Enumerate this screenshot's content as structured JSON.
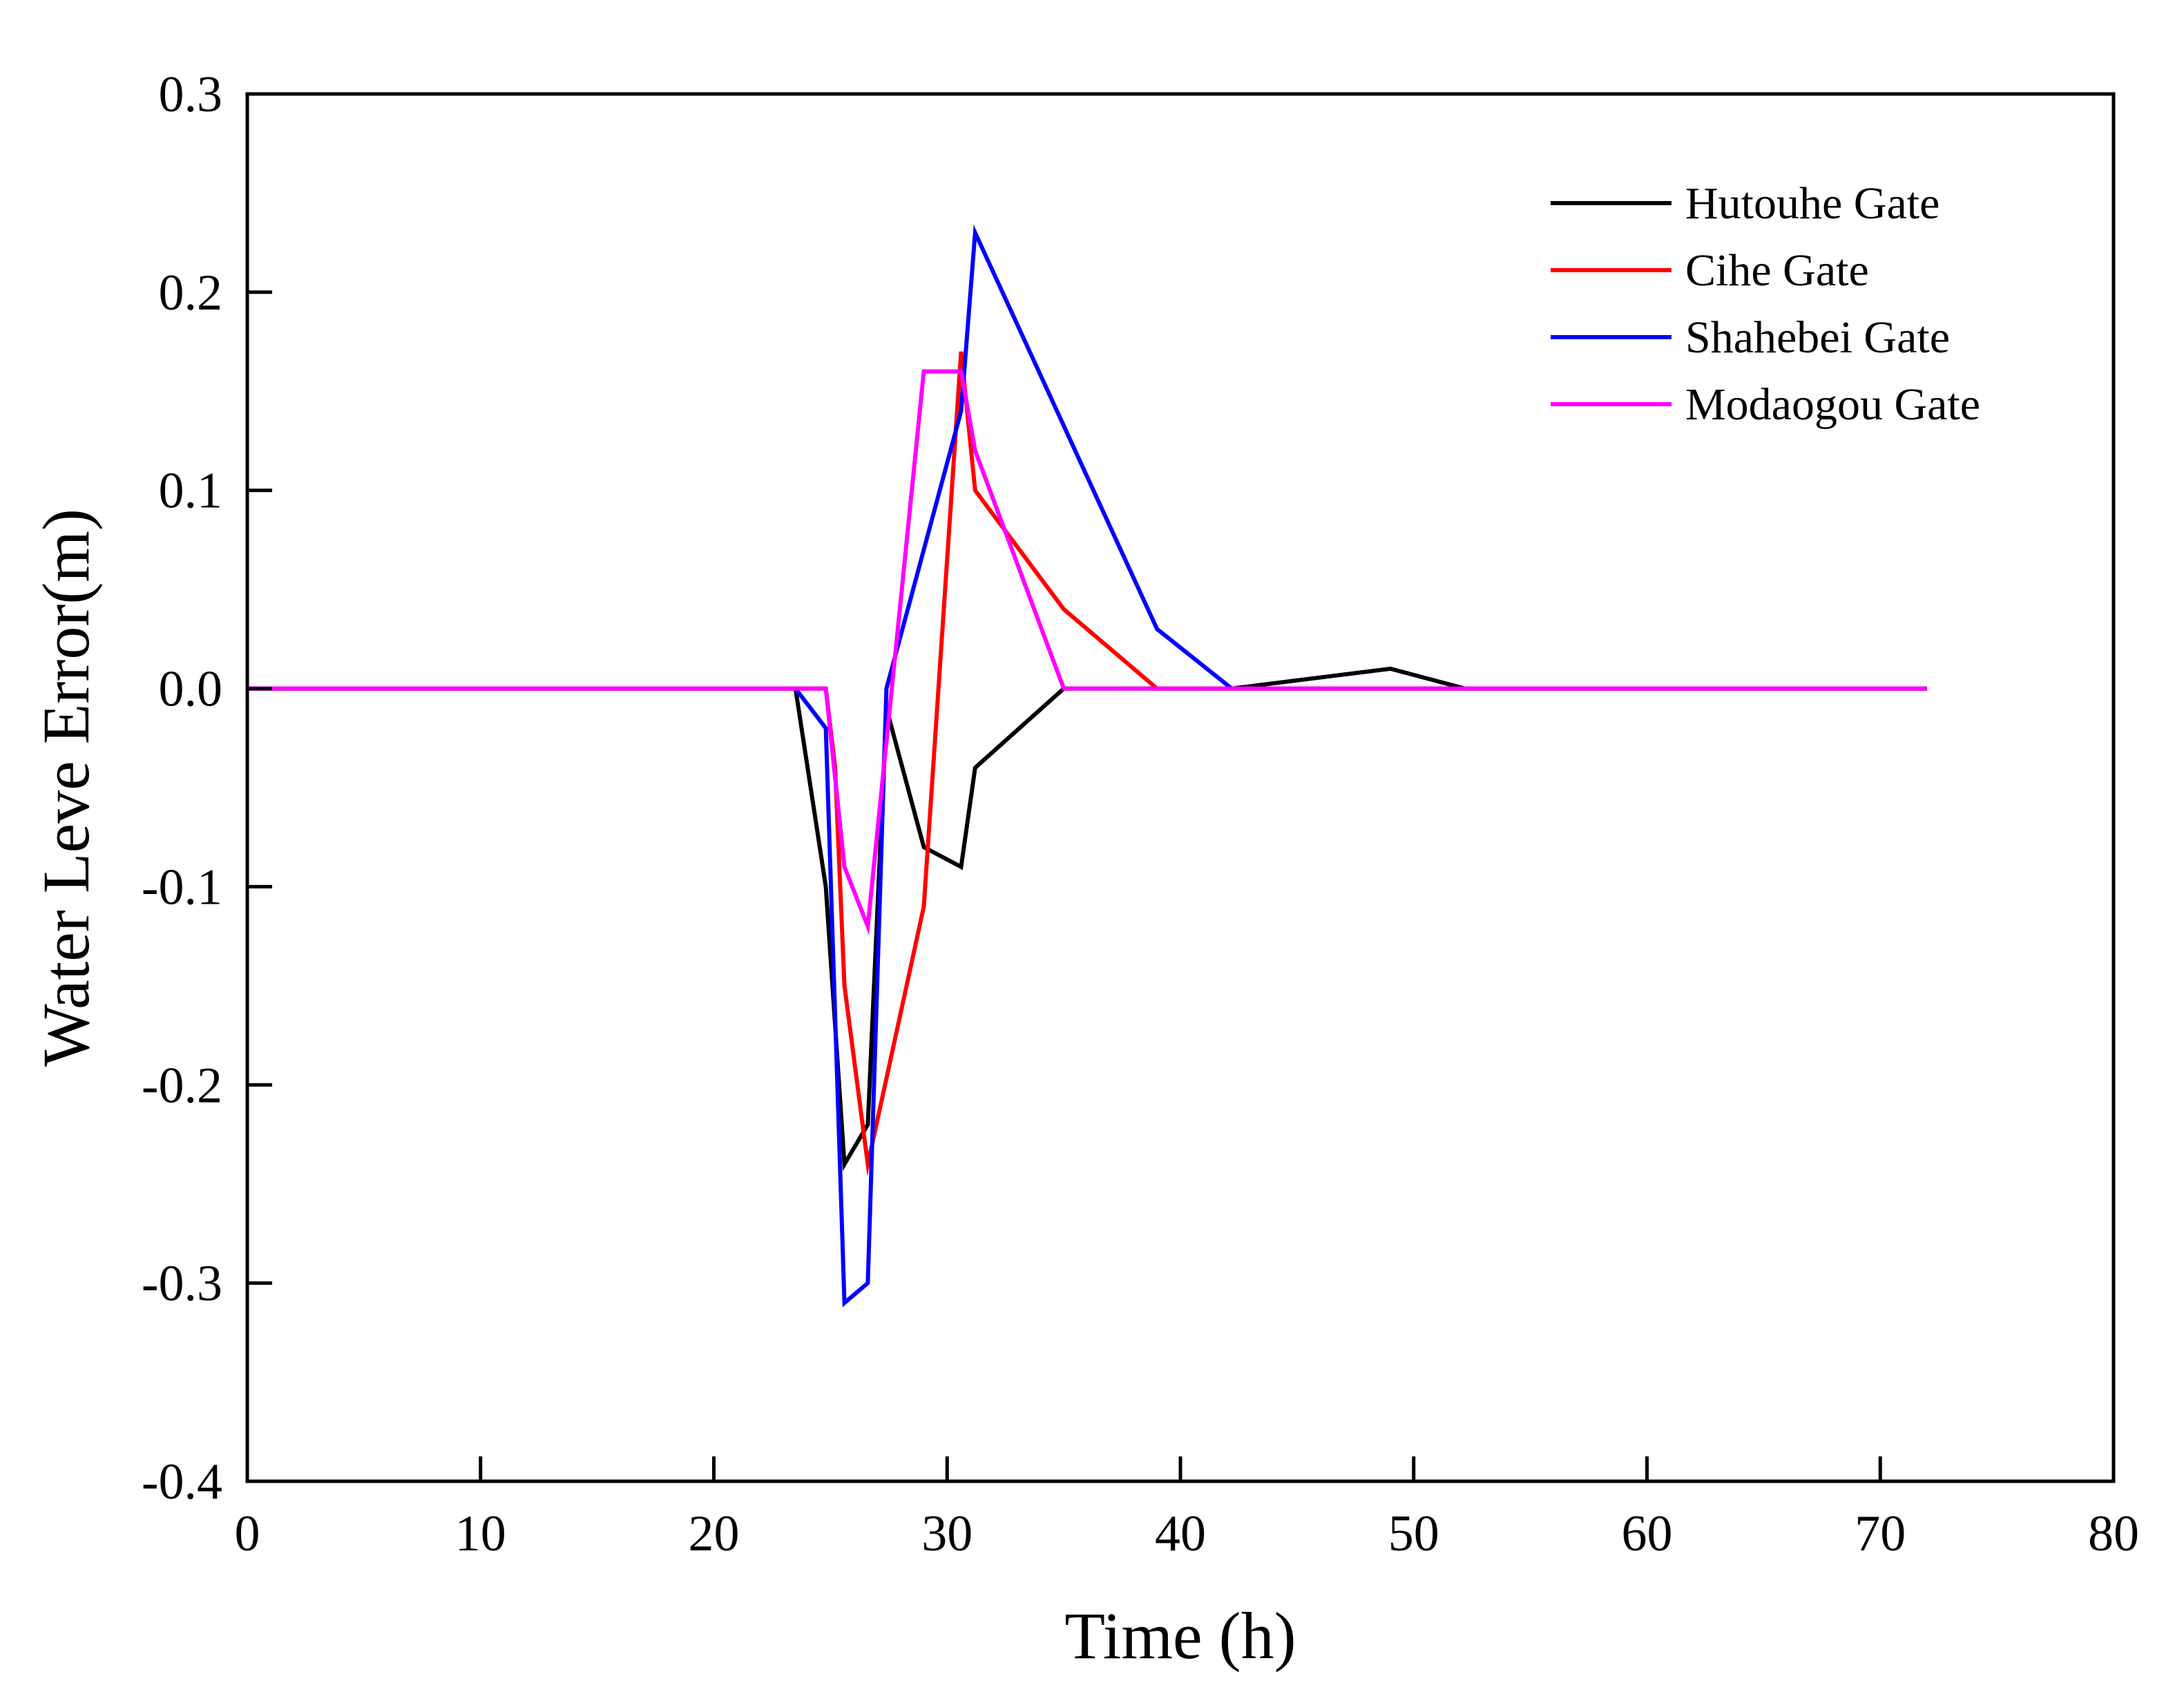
{
  "chart_data": {
    "type": "line",
    "title": "",
    "xlabel": "Time (h)",
    "ylabel": "Water Leve Error(m)",
    "xlim": [
      0,
      80
    ],
    "ylim": [
      -0.4,
      0.3
    ],
    "xticks": [
      0,
      10,
      20,
      30,
      40,
      50,
      60,
      70,
      80
    ],
    "xtick_labels": [
      "0",
      "10",
      "20",
      "30",
      "40",
      "50",
      "60",
      "70",
      "80"
    ],
    "yticks": [
      0.3,
      0.2,
      0.1,
      0.0,
      -0.1,
      -0.2,
      -0.3,
      -0.4
    ],
    "ytick_labels": [
      "0.3",
      "0.2",
      "0.1",
      "0.0",
      "-0.1",
      "-0.2",
      "-0.3",
      "-0.4"
    ],
    "grid": false,
    "legend_position": "top-right",
    "series": [
      {
        "name": "Hutouhe Gate",
        "color": "#000000",
        "x": [
          0,
          23.5,
          24.8,
          25.6,
          26.6,
          27.4,
          29.0,
          30.6,
          31.2,
          35.0,
          42.2,
          49.0,
          52.2,
          72.0
        ],
        "y": [
          0,
          0,
          -0.1,
          -0.24,
          -0.22,
          -0.01,
          -0.08,
          -0.09,
          -0.04,
          0,
          0,
          0.01,
          0,
          0
        ]
      },
      {
        "name": "Cihe Gate",
        "color": "#ff0000",
        "x": [
          0,
          24.8,
          25.2,
          25.6,
          26.6,
          29.0,
          30.6,
          31.2,
          35.0,
          39.0,
          72.0
        ],
        "y": [
          0,
          0,
          -0.04,
          -0.15,
          -0.24,
          -0.11,
          0.17,
          0.1,
          0.04,
          0,
          0
        ]
      },
      {
        "name": "Shahebei Gate",
        "color": "#0000ff",
        "x": [
          0,
          23.5,
          24.8,
          25.6,
          26.6,
          27.4,
          30.6,
          31.2,
          39.0,
          42.2,
          72.0
        ],
        "y": [
          0,
          0,
          -0.02,
          -0.31,
          -0.3,
          0,
          0.14,
          0.23,
          0.03,
          0,
          0
        ]
      },
      {
        "name": "Modaogou Gate",
        "color": "#ff00ff",
        "x": [
          0,
          24.8,
          25.6,
          26.6,
          29.0,
          30.6,
          31.2,
          35.0,
          72.0
        ],
        "y": [
          0,
          0,
          -0.09,
          -0.12,
          0.16,
          0.16,
          0.12,
          0,
          0
        ]
      }
    ]
  }
}
